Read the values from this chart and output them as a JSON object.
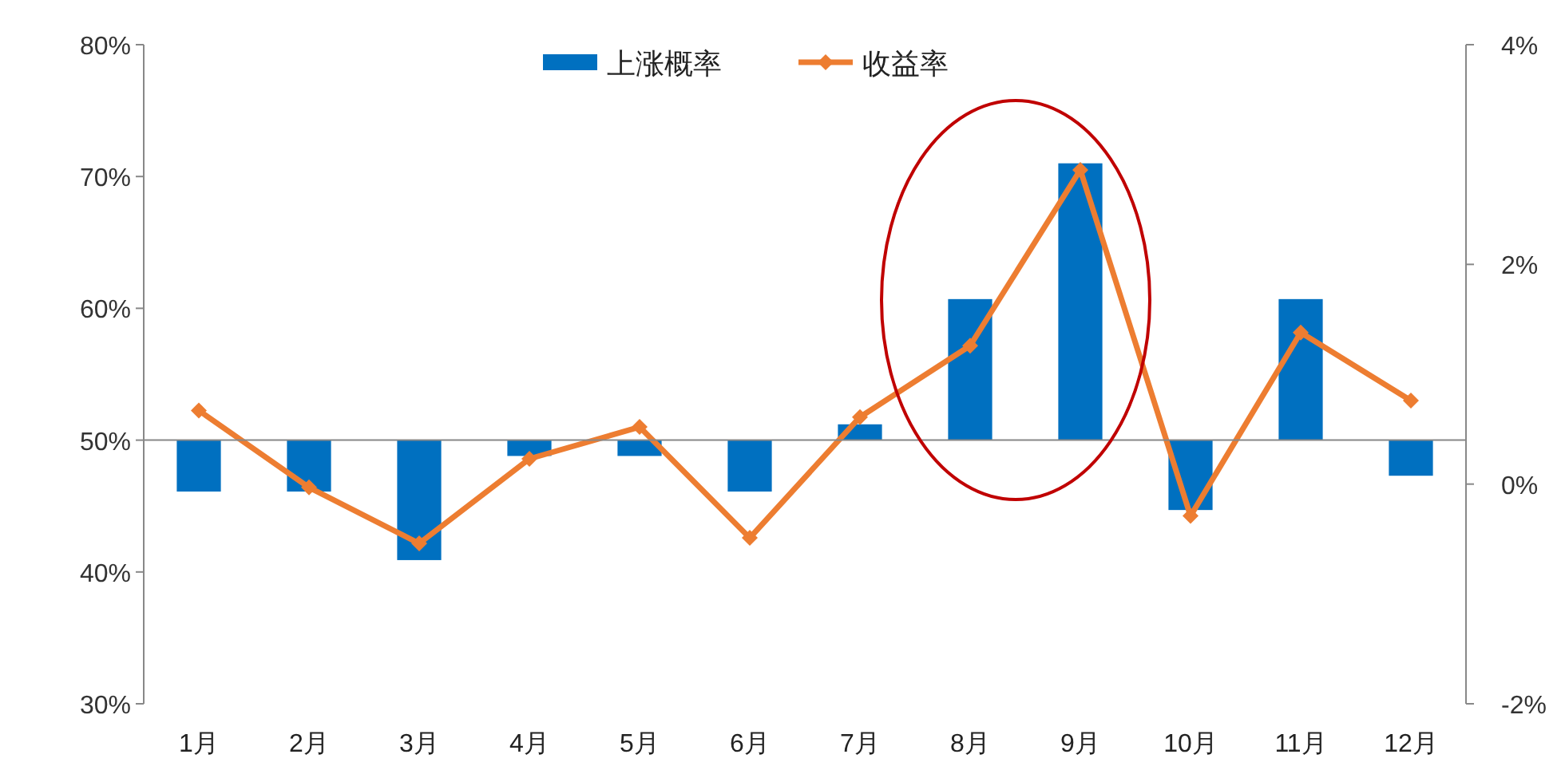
{
  "chart_data": {
    "type": "bar",
    "categories": [
      "1月",
      "2月",
      "3月",
      "4月",
      "5月",
      "6月",
      "7月",
      "8月",
      "9月",
      "10月",
      "11月",
      "12月"
    ],
    "series": [
      {
        "name": "上涨概率",
        "color": "#0070c0",
        "base": [
          50,
          50,
          50,
          50,
          50,
          50,
          50,
          50,
          50,
          50,
          50,
          50
        ],
        "values": [
          -3.9,
          -3.9,
          -9.1,
          -1.2,
          -1.2,
          -3.9,
          1.2,
          10.7,
          21.0,
          -5.3,
          10.7,
          -2.7
        ]
      },
      {
        "name": "收益率",
        "type": "line",
        "axis": "y2",
        "color": "#ed7d31",
        "marker": "diamond",
        "values": [
          0.67,
          -0.03,
          -0.54,
          0.23,
          0.52,
          -0.49,
          0.61,
          1.26,
          2.86,
          -0.29,
          1.38,
          0.76
        ]
      }
    ],
    "ylim": [
      30,
      80
    ],
    "yticks": [
      {
        "value": 30,
        "label": "30%"
      },
      {
        "value": 40,
        "label": "40%"
      },
      {
        "value": 50,
        "label": "50%"
      },
      {
        "value": 60,
        "label": "60%"
      },
      {
        "value": 70,
        "label": "70%"
      },
      {
        "value": 80,
        "label": "80%"
      }
    ],
    "y2lim": [
      -2,
      4
    ],
    "y2ticks": [
      {
        "value": -2,
        "label": "-2%"
      },
      {
        "value": 0,
        "label": "0%"
      },
      {
        "value": 2,
        "label": "2%"
      },
      {
        "value": 4,
        "label": "4%"
      }
    ],
    "legend": "top"
  }
}
